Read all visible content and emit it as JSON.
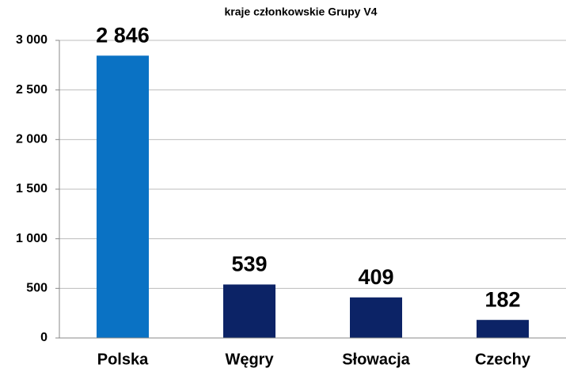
{
  "chart_data": {
    "type": "bar",
    "title": "kraje członkowskie Grupy V4",
    "categories": [
      "Polska",
      "Węgry",
      "Słowacja",
      "Czechy"
    ],
    "values": [
      2846,
      539,
      409,
      182
    ],
    "value_labels": [
      "2 846",
      "539",
      "409",
      "182"
    ],
    "colors": [
      "#0a72c4",
      "#0c2366",
      "#0c2366",
      "#0c2366"
    ],
    "ylim": [
      0,
      3000
    ],
    "yticks": [
      0,
      500,
      {
        "value": 1000,
        "label": "1 000"
      },
      {
        "value": 1500,
        "label": "1 500"
      },
      {
        "value": 2000,
        "label": "2 000"
      },
      {
        "value": 2500,
        "label": "2 500"
      },
      {
        "value": 3000,
        "label": "3 000"
      }
    ],
    "grid": true
  }
}
